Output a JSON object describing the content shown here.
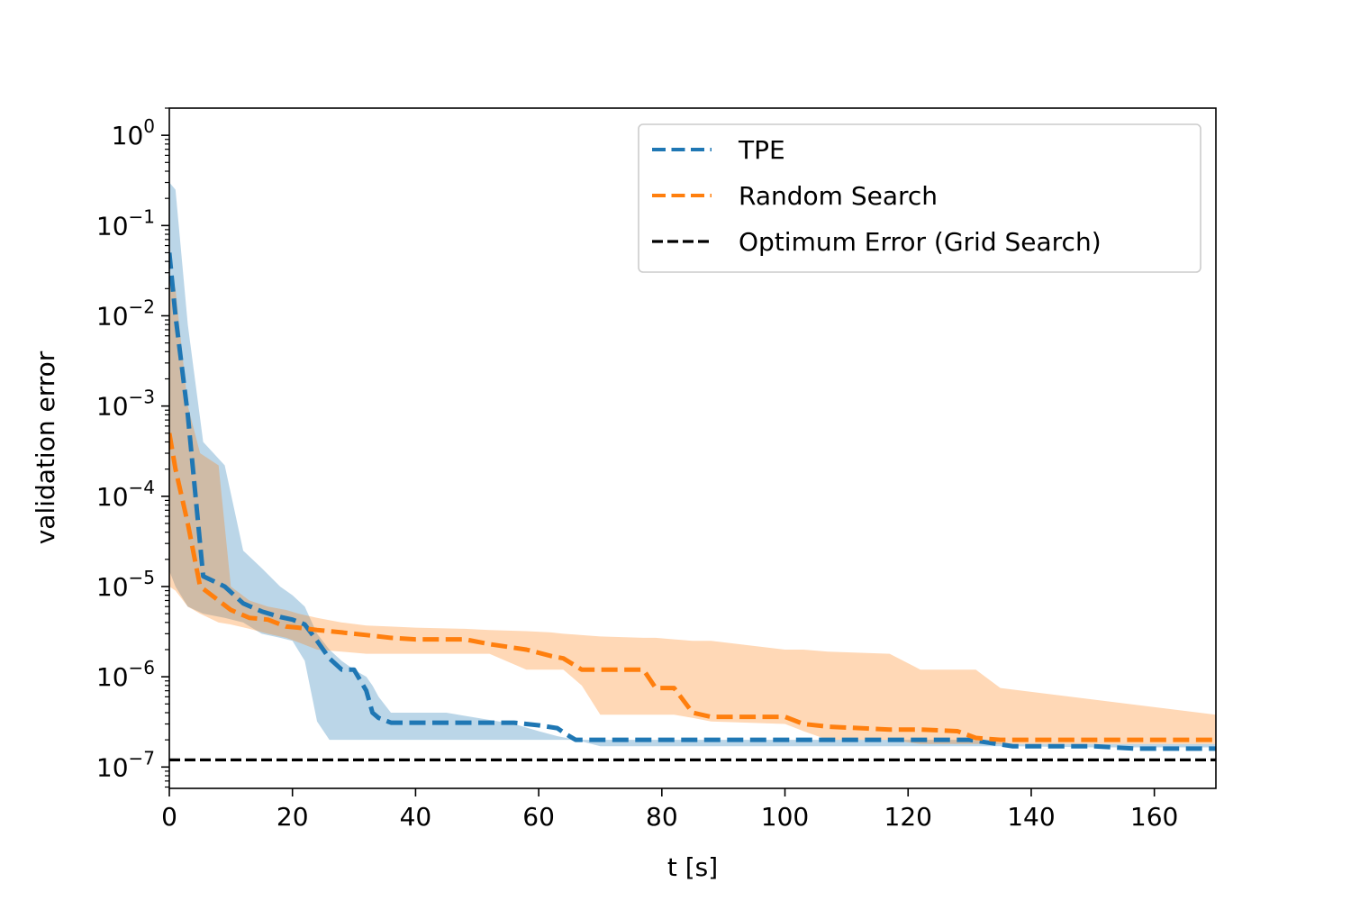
{
  "chart_data": {
    "type": "line",
    "title": "",
    "xlabel": "t [s]",
    "ylabel": "validation error",
    "xlim": [
      0,
      170
    ],
    "ylim": [
      5.8e-08,
      2.0
    ],
    "yscale": "log",
    "grid": false,
    "legend_position": "top-right",
    "x_ticks": [
      0,
      20,
      40,
      60,
      80,
      100,
      120,
      140,
      160
    ],
    "x_tick_labels": [
      "0",
      "20",
      "40",
      "60",
      "80",
      "100",
      "120",
      "140",
      "160"
    ],
    "y_ticks": [
      {
        "value": 1.0,
        "base": "10",
        "exp": "0"
      },
      {
        "value": 0.1,
        "base": "10",
        "exp": "−1"
      },
      {
        "value": 0.01,
        "base": "10",
        "exp": "−2"
      },
      {
        "value": 0.001,
        "base": "10",
        "exp": "−3"
      },
      {
        "value": 0.0001,
        "base": "10",
        "exp": "−4"
      },
      {
        "value": 1e-05,
        "base": "10",
        "exp": "−5"
      },
      {
        "value": 1e-06,
        "base": "10",
        "exp": "−6"
      },
      {
        "value": 1e-07,
        "base": "10",
        "exp": "−7"
      }
    ],
    "series": [
      {
        "name": "TPE",
        "color": "#1f77b4",
        "band_alpha": 0.3,
        "x": [
          0,
          1,
          3,
          5.5,
          9,
          12,
          15,
          18,
          20,
          22,
          24,
          26,
          28,
          30,
          32,
          33,
          34,
          36,
          40,
          45,
          50,
          56,
          60,
          63,
          64.5,
          66,
          70,
          100,
          130,
          137,
          150,
          157,
          165,
          170
        ],
        "y": [
          0.05,
          0.01,
          0.0008,
          1.3e-05,
          1e-05,
          6.5e-06,
          5.3e-06,
          4.6e-06,
          4.3e-06,
          3.8e-06,
          2.5e-06,
          1.6e-06,
          1.2e-06,
          1.2e-06,
          7e-07,
          4e-07,
          3.5e-07,
          3.1e-07,
          3.1e-07,
          3.1e-07,
          3.1e-07,
          3.1e-07,
          2.9e-07,
          2.7e-07,
          2.3e-07,
          2e-07,
          2e-07,
          2e-07,
          2e-07,
          1.7e-07,
          1.7e-07,
          1.6e-07,
          1.6e-07,
          1.6e-07
        ],
        "upper": [
          0.3,
          0.25,
          0.008,
          0.0004,
          0.00022,
          2.5e-05,
          1.6e-05,
          1e-05,
          8e-06,
          6e-06,
          3e-06,
          2e-06,
          1.5e-06,
          1.2e-06,
          1e-06,
          8e-07,
          6e-07,
          4e-07,
          4e-07,
          4e-07,
          3.5e-07,
          3e-07,
          2.5e-07,
          2.2e-07,
          2.1e-07,
          2e-07,
          2e-07,
          2e-07,
          2e-07,
          1.8e-07,
          1.8e-07,
          1.8e-07,
          1.8e-07,
          1.8e-07
        ],
        "lower": [
          1.5e-05,
          1e-05,
          6e-06,
          5e-06,
          4.5e-06,
          4e-06,
          3e-06,
          2.7e-06,
          2.5e-06,
          1.5e-06,
          3.2e-07,
          2e-07,
          2e-07,
          2e-07,
          2e-07,
          2e-07,
          2e-07,
          2e-07,
          2e-07,
          2e-07,
          2e-07,
          2e-07,
          2e-07,
          2e-07,
          2e-07,
          2e-07,
          1.7e-07,
          1.7e-07,
          1.7e-07,
          1.7e-07,
          1.65e-07,
          1.65e-07,
          1.65e-07,
          1.65e-07
        ]
      },
      {
        "name": "Random Search",
        "color": "#ff7f0e",
        "band_alpha": 0.3,
        "x": [
          0,
          1,
          3,
          5,
          8,
          10,
          13,
          16,
          19,
          21,
          24,
          28,
          32,
          36,
          40,
          48,
          52,
          58,
          62,
          64,
          67,
          70,
          77,
          79,
          82,
          85,
          88,
          100,
          103,
          107,
          117,
          122,
          128,
          131,
          135,
          170
        ],
        "y": [
          0.0005,
          0.0002,
          5e-05,
          1e-05,
          7e-06,
          5.5e-06,
          4.5e-06,
          4.3e-06,
          3.6e-06,
          3.5e-06,
          3.3e-06,
          3.1e-06,
          2.9e-06,
          2.7e-06,
          2.6e-06,
          2.6e-06,
          2.3e-06,
          2e-06,
          1.7e-06,
          1.6e-06,
          1.2e-06,
          1.2e-06,
          1.2e-06,
          7.5e-07,
          7.5e-07,
          4e-07,
          3.6e-07,
          3.6e-07,
          3e-07,
          2.8e-07,
          2.6e-07,
          2.6e-07,
          2.5e-07,
          2.1e-07,
          2e-07,
          2e-07
        ],
        "upper": [
          0.03,
          0.02,
          0.001,
          0.0003,
          0.00022,
          1e-05,
          7e-06,
          6e-06,
          5.5e-06,
          5e-06,
          4.5e-06,
          4e-06,
          3.7e-06,
          3.6e-06,
          3.5e-06,
          3.4e-06,
          3.3e-06,
          3.2e-06,
          3.1e-06,
          3e-06,
          2.9e-06,
          2.8e-06,
          2.7e-06,
          2.7e-06,
          2.6e-06,
          2.5e-06,
          2.5e-06,
          2e-06,
          2e-06,
          1.9e-06,
          1.8e-06,
          1.2e-06,
          1.2e-06,
          1.2e-06,
          7.5e-07,
          3.8e-07
        ],
        "lower": [
          1e-05,
          9e-06,
          6e-06,
          5e-06,
          4e-06,
          3.8e-06,
          3.4e-06,
          3e-06,
          2.7e-06,
          2.4e-06,
          2e-06,
          1.9e-06,
          1.8e-06,
          1.8e-06,
          1.8e-06,
          1.8e-06,
          1.8e-06,
          1.2e-06,
          1.2e-06,
          1.2e-06,
          8e-07,
          3.8e-07,
          3.8e-07,
          3.8e-07,
          3.8e-07,
          3.5e-07,
          3.2e-07,
          3e-07,
          2.5e-07,
          2e-07,
          2e-07,
          1.8e-07,
          1.8e-07,
          1.8e-07,
          1.8e-07,
          1.8e-07
        ]
      }
    ],
    "reference_line": {
      "name": "Optimum Error (Grid Search)",
      "color": "#000000",
      "y": 1.2e-07
    }
  }
}
